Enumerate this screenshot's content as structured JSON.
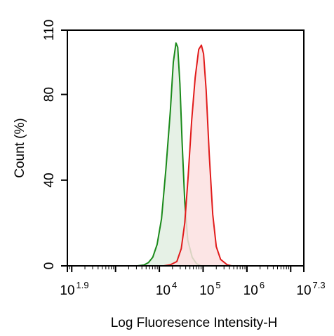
{
  "chart_data": {
    "type": "area",
    "xlabel": "Log Fluoresence Intensity-H",
    "ylabel": "Count  (%)",
    "x_scale": "log10",
    "xlim_exp": [
      1.9,
      7.3
    ],
    "ylim": [
      0,
      110
    ],
    "x_ticks": [
      {
        "base": "10",
        "exp": "1.9",
        "value_exp": 1.9
      },
      {
        "base": "10",
        "exp": "4",
        "value_exp": 4
      },
      {
        "base": "10",
        "exp": "5",
        "value_exp": 5
      },
      {
        "base": "10",
        "exp": "6",
        "value_exp": 6
      },
      {
        "base": "10",
        "exp": "7.3",
        "value_exp": 7.3
      }
    ],
    "y_ticks": [
      {
        "label": "0",
        "value": 0
      },
      {
        "label": "40",
        "value": 40
      },
      {
        "label": "80",
        "value": 80
      },
      {
        "label": "110",
        "value": 110
      }
    ],
    "grid": false,
    "legend": "none",
    "series": [
      {
        "color": "#1a8a1a",
        "fill": "#e2efe2",
        "points": [
          [
            3.5,
            0
          ],
          [
            3.65,
            0.4
          ],
          [
            3.75,
            1.5
          ],
          [
            3.85,
            4
          ],
          [
            3.95,
            10
          ],
          [
            4.05,
            22
          ],
          [
            4.15,
            45
          ],
          [
            4.25,
            72
          ],
          [
            4.32,
            95
          ],
          [
            4.38,
            104
          ],
          [
            4.42,
            102
          ],
          [
            4.47,
            85
          ],
          [
            4.52,
            58
          ],
          [
            4.58,
            30
          ],
          [
            4.65,
            12
          ],
          [
            4.75,
            4
          ],
          [
            4.85,
            1
          ],
          [
            4.95,
            0
          ]
        ]
      },
      {
        "color": "#e11b1b",
        "fill": "#fbe0e0",
        "points": [
          [
            4.1,
            0
          ],
          [
            4.25,
            0.5
          ],
          [
            4.4,
            2
          ],
          [
            4.5,
            8
          ],
          [
            4.58,
            20
          ],
          [
            4.66,
            42
          ],
          [
            4.74,
            68
          ],
          [
            4.82,
            88
          ],
          [
            4.9,
            101
          ],
          [
            4.96,
            103
          ],
          [
            5.01,
            99
          ],
          [
            5.07,
            82
          ],
          [
            5.14,
            52
          ],
          [
            5.22,
            24
          ],
          [
            5.3,
            9
          ],
          [
            5.4,
            3
          ],
          [
            5.55,
            0.5
          ],
          [
            5.65,
            0
          ]
        ]
      }
    ]
  }
}
